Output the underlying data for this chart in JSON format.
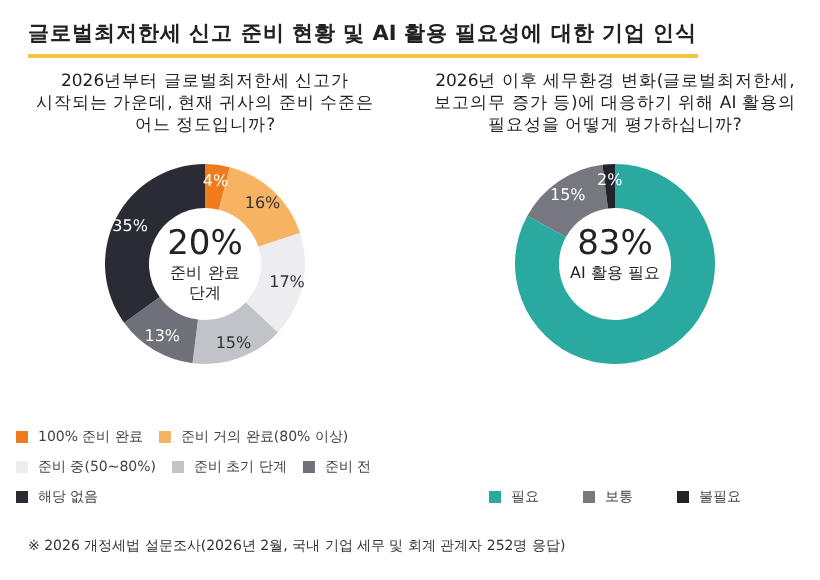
{
  "chart_data": [
    {
      "type": "donut",
      "title": "글로벌최저한세 신고 준비 현황 및 AI 활용 필요성에 대한 기업 인식",
      "subtitle": "2026년부터 글로벌최저한세 신고가 시작되는 가운데, 현재 귀사의 준비 수준은 어느 정도입니까?",
      "categories": [
        "100% 준비 완료",
        "준비 거의 완료(80% 이상)",
        "준비 중(50~80%)",
        "준비 초기 단계",
        "준비 전",
        "해당 없음"
      ],
      "values": [
        4,
        16,
        17,
        15,
        13,
        35
      ],
      "colors": [
        "#f07b1c",
        "#f6b463",
        "#ededf1",
        "#c2c2c9",
        "#707079",
        "#2b2b36"
      ],
      "value_labels": [
        "4%",
        "16%",
        "17%",
        "15%",
        "13%",
        "35%"
      ],
      "legend": "bottom",
      "annotations": [
        "20%",
        "준비 완료 단계",
        "※ 2026 개정세법 설문조사(2026년 2월, 국내 기업 세무 및 회계 관계자 252명 응답)"
      ]
    },
    {
      "type": "donut",
      "title": "2026년 이후 세무환경 변화(글로벌최저한세, 보고의무 증가 등)에 대응하기 위해 AI 활용의 필요성을 어떻게 평가하십니까?",
      "categories": [
        "필요",
        "보통",
        "불필요"
      ],
      "values": [
        83,
        15,
        2
      ],
      "colors": [
        "#2aa9a1",
        "#77777f",
        "#23232b"
      ],
      "value_labels": [
        null,
        "15%",
        "2%"
      ],
      "legend": "bottom",
      "annotations": [
        "83%",
        "AI 활용 필요"
      ]
    }
  ]
}
